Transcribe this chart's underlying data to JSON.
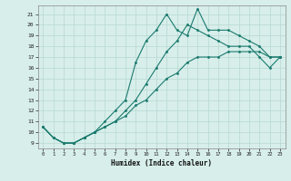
{
  "title": "",
  "xlabel": "Humidex (Indice chaleur)",
  "ylabel": "",
  "bg_color": "#d7eeea",
  "grid_color": "#b8d8d2",
  "line_color": "#1a7a6e",
  "xlim": [
    -0.5,
    23.5
  ],
  "ylim": [
    8.5,
    21.8
  ],
  "yticks": [
    9,
    10,
    11,
    12,
    13,
    14,
    15,
    16,
    17,
    18,
    19,
    20,
    21
  ],
  "xticks": [
    0,
    1,
    2,
    3,
    4,
    5,
    6,
    7,
    8,
    9,
    10,
    11,
    12,
    13,
    14,
    15,
    16,
    17,
    18,
    19,
    20,
    21,
    22,
    23
  ],
  "x": [
    0,
    1,
    2,
    3,
    4,
    5,
    6,
    7,
    8,
    9,
    10,
    11,
    12,
    13,
    14,
    15,
    16,
    17,
    18,
    19,
    20,
    21,
    22,
    23
  ],
  "line1": [
    10.5,
    9.5,
    9.0,
    9.0,
    9.5,
    10.0,
    11.0,
    12.0,
    13.0,
    16.5,
    18.5,
    19.5,
    21.0,
    19.5,
    19.0,
    21.5,
    19.5,
    19.5,
    19.5,
    19.0,
    18.5,
    18.0,
    17.0,
    17.0
  ],
  "line2": [
    10.5,
    9.5,
    9.0,
    9.0,
    9.5,
    10.0,
    10.5,
    11.0,
    12.0,
    13.0,
    14.5,
    16.0,
    17.5,
    18.5,
    20.0,
    19.5,
    19.0,
    18.5,
    18.0,
    18.0,
    18.0,
    17.0,
    16.0,
    17.0
  ],
  "line3": [
    10.5,
    9.5,
    9.0,
    9.0,
    9.5,
    10.0,
    10.5,
    11.0,
    11.5,
    12.5,
    13.0,
    14.0,
    15.0,
    15.5,
    16.5,
    17.0,
    17.0,
    17.0,
    17.5,
    17.5,
    17.5,
    17.5,
    17.0,
    17.0
  ]
}
